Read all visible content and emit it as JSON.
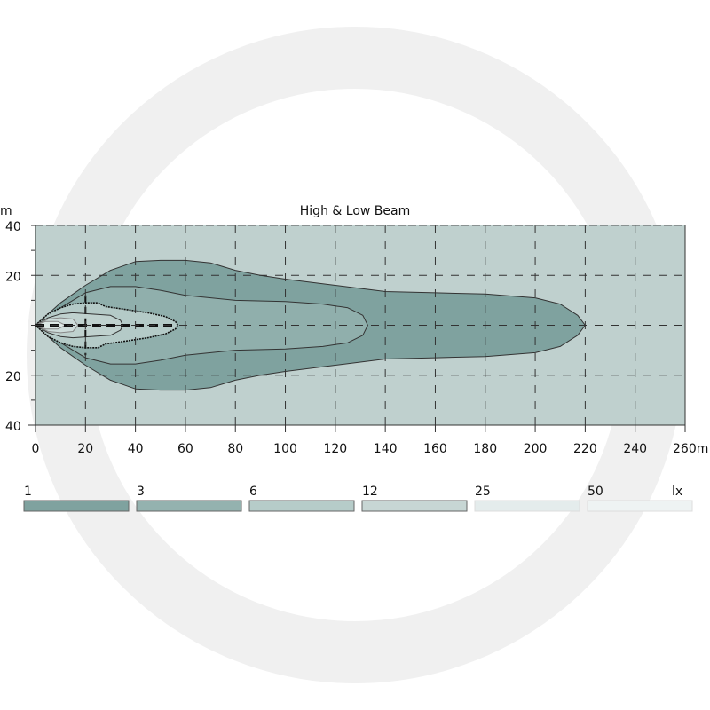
{
  "chart_data": {
    "type": "area",
    "title": "High & Low Beam",
    "xlabel": "",
    "ylabel": "",
    "x_unit": "m",
    "y_unit": "m",
    "xlim": [
      0,
      260
    ],
    "ylim": [
      -40,
      40
    ],
    "x_ticks": [
      "0",
      "20",
      "40",
      "60",
      "80",
      "100",
      "120",
      "140",
      "160",
      "180",
      "200",
      "220",
      "240",
      "260m"
    ],
    "y_ticks": [
      {
        "value": 40,
        "label": "40"
      },
      {
        "value": 20,
        "label": "20"
      },
      {
        "value": -20,
        "label": "20"
      },
      {
        "value": -40,
        "label": "40"
      }
    ],
    "y_unit_label": "m",
    "grid": true,
    "background_color": "#bfd0ce",
    "legend_unit": "lx",
    "legend_position": "bottom",
    "series": [
      {
        "name": "1",
        "color": "#7fa29f",
        "half_width_profile": [
          [
            0,
            0
          ],
          [
            10,
            9
          ],
          [
            20,
            16
          ],
          [
            30,
            22
          ],
          [
            40,
            25.5
          ],
          [
            50,
            26
          ],
          [
            60,
            26
          ],
          [
            70,
            25
          ],
          [
            80,
            22
          ],
          [
            90,
            20
          ],
          [
            100,
            18.5
          ],
          [
            120,
            16
          ],
          [
            140,
            13.5
          ],
          [
            160,
            13
          ],
          [
            180,
            12.5
          ],
          [
            200,
            11
          ],
          [
            210,
            8.5
          ],
          [
            217,
            4
          ],
          [
            220,
            0
          ]
        ]
      },
      {
        "name": "3",
        "color": "#90afac",
        "half_width_profile": [
          [
            0,
            0
          ],
          [
            10,
            7
          ],
          [
            20,
            13
          ],
          [
            30,
            15.5
          ],
          [
            40,
            15.5
          ],
          [
            50,
            14
          ],
          [
            60,
            12
          ],
          [
            80,
            10
          ],
          [
            100,
            9.5
          ],
          [
            115,
            8.5
          ],
          [
            125,
            7
          ],
          [
            131,
            4
          ],
          [
            133,
            0
          ]
        ]
      },
      {
        "name": "6",
        "color": "#b4cac7",
        "half_width_profile": [
          [
            0,
            0
          ],
          [
            5,
            4.5
          ],
          [
            10,
            7
          ],
          [
            15,
            8.5
          ],
          [
            20,
            9
          ],
          [
            25,
            9
          ],
          [
            28,
            7.5
          ],
          [
            35,
            6.5
          ],
          [
            45,
            5
          ],
          [
            52,
            3.5
          ],
          [
            56,
            1.5
          ],
          [
            57,
            0
          ]
        ]
      },
      {
        "name": "12",
        "color": "#bfd1ce",
        "half_width_profile": [
          [
            0,
            0
          ],
          [
            5,
            3
          ],
          [
            10,
            4.5
          ],
          [
            15,
            5
          ],
          [
            22,
            4.5
          ],
          [
            30,
            4
          ],
          [
            34,
            2
          ],
          [
            35,
            0
          ]
        ]
      },
      {
        "name": "25",
        "color": "#cddcda",
        "half_width_profile": [
          [
            0,
            0
          ],
          [
            5,
            2.5
          ],
          [
            10,
            3
          ],
          [
            15,
            2.5
          ],
          [
            17,
            0
          ]
        ]
      },
      {
        "name": "50",
        "color": "#dde8e6",
        "half_width_profile": [
          [
            0,
            0
          ],
          [
            4,
            1.5
          ],
          [
            9,
            1.5
          ],
          [
            12,
            0
          ]
        ]
      }
    ],
    "legend": [
      {
        "label": "1",
        "color": "#7fa29f"
      },
      {
        "label": "3",
        "color": "#94b2af"
      },
      {
        "label": "6",
        "color": "#b6ccc9"
      },
      {
        "label": "12",
        "color": "#c7d6d4"
      },
      {
        "label": "25",
        "color": "#e4ecec"
      },
      {
        "label": "50",
        "color": "#eef3f3"
      }
    ]
  }
}
